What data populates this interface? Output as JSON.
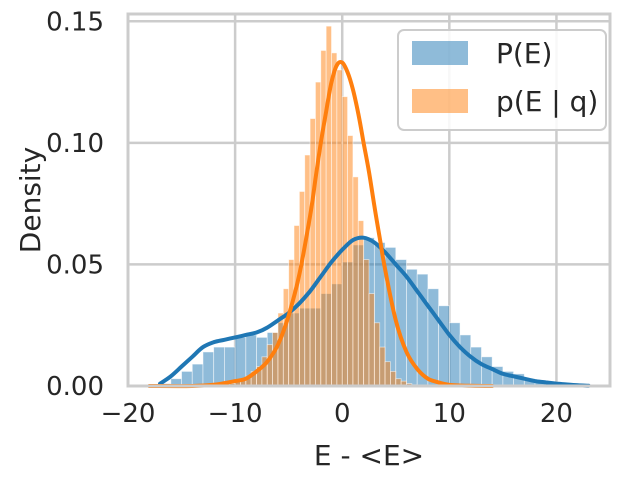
{
  "chart_data": {
    "type": "histogram",
    "xlabel": "E - <E>",
    "ylabel": "Density",
    "xlim": [
      -20,
      25
    ],
    "ylim": [
      0,
      0.153
    ],
    "xticks": [
      -20,
      -10,
      0,
      10,
      20
    ],
    "xtick_labels": [
      "−20",
      "−10",
      "0",
      "10",
      "20"
    ],
    "yticks": [
      0.0,
      0.05,
      0.1,
      0.15
    ],
    "ytick_labels": [
      "0.00",
      "0.05",
      "0.10",
      "0.15"
    ],
    "grid": true,
    "legend_position": "upper right",
    "series": [
      {
        "name": "P(E)",
        "color": "#1f77b4",
        "histogram": {
          "bin_start": -17.0,
          "bin_width": 1.0,
          "densities": [
            0.001,
            0.003,
            0.006,
            0.009,
            0.014,
            0.016,
            0.016,
            0.02,
            0.021,
            0.02,
            0.022,
            0.026,
            0.03,
            0.032,
            0.032,
            0.038,
            0.042,
            0.051,
            0.058,
            0.061,
            0.059,
            0.057,
            0.052,
            0.048,
            0.046,
            0.04,
            0.033,
            0.026,
            0.021,
            0.016,
            0.012,
            0.008,
            0.006,
            0.005,
            0.003,
            0.002,
            0.001,
            0.001,
            0.0005,
            0.0004
          ]
        },
        "kde": {
          "x": [
            -17,
            -16,
            -15,
            -14,
            -13,
            -12,
            -11,
            -10,
            -9,
            -8,
            -7,
            -6,
            -5,
            -4,
            -3,
            -2,
            -1,
            0,
            1,
            2,
            3,
            4,
            5,
            6,
            7,
            8,
            9,
            10,
            11,
            12,
            13,
            14,
            15,
            16,
            17,
            18,
            19,
            20,
            21,
            22,
            23
          ],
          "y": [
            0.001,
            0.004,
            0.008,
            0.012,
            0.016,
            0.018,
            0.019,
            0.02,
            0.021,
            0.022,
            0.024,
            0.027,
            0.03,
            0.034,
            0.039,
            0.045,
            0.051,
            0.056,
            0.06,
            0.061,
            0.059,
            0.055,
            0.05,
            0.045,
            0.039,
            0.033,
            0.027,
            0.021,
            0.016,
            0.012,
            0.009,
            0.007,
            0.005,
            0.004,
            0.003,
            0.002,
            0.0015,
            0.001,
            0.0006,
            0.0003,
            0.0001
          ]
        }
      },
      {
        "name": "p(E | q)",
        "color": "#ff7f0e",
        "histogram": {
          "bin_start": -18.0,
          "bin_width": 0.5,
          "densities": [
            0,
            0,
            0,
            0,
            0,
            0,
            0,
            0,
            0,
            0,
            0,
            0,
            0,
            0,
            0,
            0.001,
            0.002,
            0.003,
            0.004,
            0.006,
            0.008,
            0.012,
            0.017,
            0.022,
            0.03,
            0.04,
            0.052,
            0.066,
            0.08,
            0.095,
            0.11,
            0.125,
            0.138,
            0.148,
            0.137,
            0.13,
            0.119,
            0.103,
            0.086,
            0.068,
            0.052,
            0.038,
            0.026,
            0.016,
            0.01,
            0.006,
            0.003,
            0.002,
            0.001,
            0.0005,
            0.0002
          ]
        },
        "kde": {
          "x": [
            -18,
            -14,
            -12,
            -10,
            -9,
            -8,
            -7,
            -6,
            -5,
            -4,
            -3,
            -2.5,
            -2,
            -1.5,
            -1,
            -0.5,
            0,
            0.5,
            1,
            1.5,
            2,
            2.5,
            3,
            3.5,
            4,
            5,
            6,
            7,
            8,
            9,
            10,
            12,
            14
          ],
          "y": [
            0,
            0,
            0.0005,
            0.002,
            0.003,
            0.006,
            0.01,
            0.017,
            0.029,
            0.046,
            0.07,
            0.085,
            0.1,
            0.113,
            0.125,
            0.132,
            0.133,
            0.129,
            0.122,
            0.112,
            0.1,
            0.088,
            0.074,
            0.061,
            0.048,
            0.027,
            0.014,
            0.007,
            0.003,
            0.0015,
            0.0005,
            0.0001,
            0
          ]
        }
      }
    ]
  }
}
